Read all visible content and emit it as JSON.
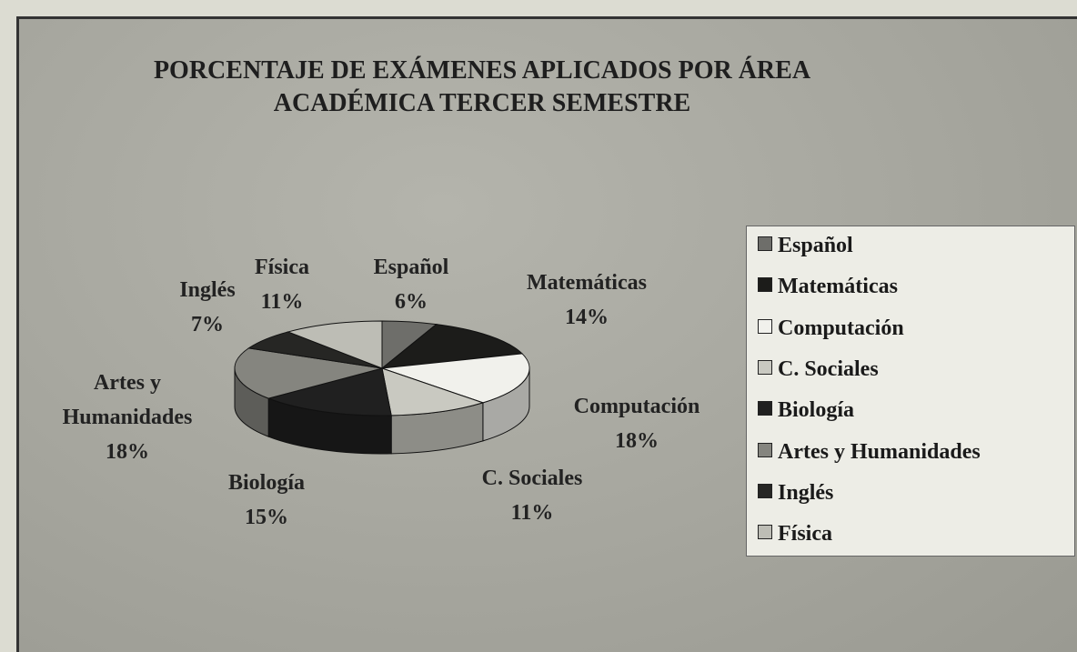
{
  "chart_data": {
    "type": "pie3d",
    "title": "PORCENTAJE DE EXÁMENES APLICADOS POR ÁREA ACADÉMICA TERCER SEMESTRE",
    "categories": [
      "Español",
      "Matemáticas",
      "Computación",
      "C. Sociales",
      "Biología",
      "Artes y Humanidades",
      "Inglés",
      "Física"
    ],
    "values": [
      6,
      14,
      18,
      11,
      15,
      18,
      7,
      11
    ],
    "value_labels": [
      "6%",
      "14%",
      "18%",
      "11%",
      "15%",
      "18%",
      "7%",
      "11%"
    ],
    "colors": [
      "#6e6e6a",
      "#1c1c1a",
      "#f1f1ec",
      "#c9c9c1",
      "#202020",
      "#85857f",
      "#262624",
      "#bdbdb5"
    ],
    "legend": "right"
  }
}
